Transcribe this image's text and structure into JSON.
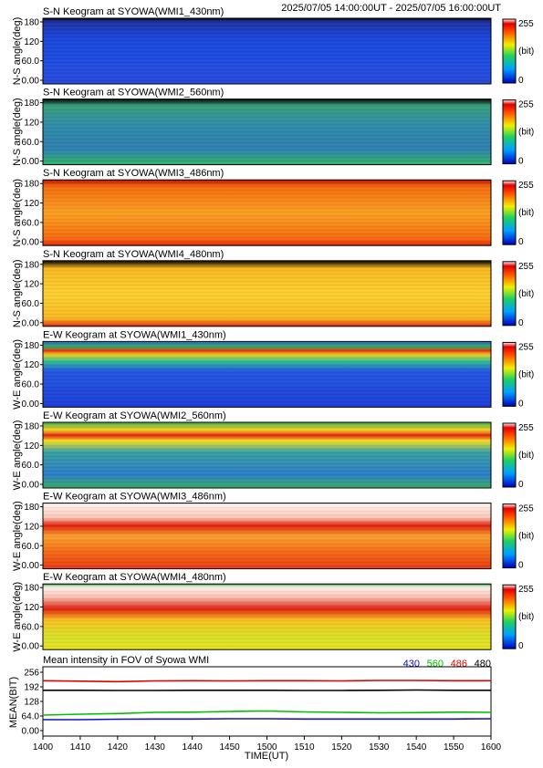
{
  "header": {
    "first_title": "S-N Keogram at SYOWA(WMI1_430nm)",
    "time_range": "2025/07/05 14:00:00UT - 2025/07/05 16:00:00UT"
  },
  "colorbar": {
    "max_label": "255",
    "unit_label": "(bit)",
    "min_label": "0"
  },
  "keograms": [
    {
      "title": "S-N Keogram at SYOWA(WMI1_430nm)",
      "ylabel": "N-S angle(deg)",
      "yticks": [
        "180",
        "120",
        "60.0",
        "0.00"
      ],
      "stops": [
        [
          0,
          "#2a4ad8"
        ],
        [
          0.3,
          "#1f4de0"
        ],
        [
          0.7,
          "#1a46dc"
        ],
        [
          0.95,
          "#1d2fa0"
        ],
        [
          1.0,
          "#000000"
        ]
      ]
    },
    {
      "title": "S-N Keogram at SYOWA(WMI2_560nm)",
      "ylabel": "N-S angle(deg)",
      "yticks": [
        "180",
        "120",
        "60.0",
        "0.00"
      ],
      "stops": [
        [
          0,
          "#2fb46a"
        ],
        [
          0.25,
          "#2f7fb0"
        ],
        [
          0.6,
          "#2f8aa8"
        ],
        [
          0.9,
          "#38a07a"
        ],
        [
          1.0,
          "#000000"
        ]
      ]
    },
    {
      "title": "S-N Keogram at SYOWA(WMI3_486nm)",
      "ylabel": "N-S angle(deg)",
      "yticks": [
        "180",
        "120",
        "60.0",
        "0.00"
      ],
      "stops": [
        [
          0,
          "#e0200c"
        ],
        [
          0.1,
          "#f46a10"
        ],
        [
          0.5,
          "#f8a020"
        ],
        [
          0.9,
          "#f46a10"
        ],
        [
          1.0,
          "#c01008"
        ]
      ]
    },
    {
      "title": "S-N Keogram at SYOWA(WMI4_480nm)",
      "ylabel": "N-S angle(deg)",
      "yticks": [
        "180",
        "120",
        "60.0",
        "0.00"
      ],
      "stops": [
        [
          0,
          "#e02a10"
        ],
        [
          0.12,
          "#f8b820"
        ],
        [
          0.5,
          "#fcd030"
        ],
        [
          0.88,
          "#f8b820"
        ],
        [
          1.0,
          "#000000"
        ]
      ]
    },
    {
      "title": "E-W Keogram at SYOWA(WMI1_430nm)",
      "ylabel": "W-E angle(deg)",
      "yticks": [
        "180",
        "120",
        "60.0",
        "0.00"
      ],
      "stops": [
        [
          0,
          "#1e3ed8"
        ],
        [
          0.55,
          "#2456e0"
        ],
        [
          0.7,
          "#30c090"
        ],
        [
          0.8,
          "#f0d020"
        ],
        [
          0.86,
          "#f03010"
        ],
        [
          0.92,
          "#30b060"
        ],
        [
          1.0,
          "#2a6ad8"
        ]
      ]
    },
    {
      "title": "E-W Keogram at SYOWA(WMI2_560nm)",
      "ylabel": "W-E angle(deg)",
      "yticks": [
        "180",
        "120",
        "60.0",
        "0.00"
      ],
      "stops": [
        [
          0,
          "#38b060"
        ],
        [
          0.2,
          "#2a7cc8"
        ],
        [
          0.55,
          "#3aa0a0"
        ],
        [
          0.72,
          "#f8e020"
        ],
        [
          0.8,
          "#e02010"
        ],
        [
          0.88,
          "#f8d020"
        ],
        [
          1.0,
          "#40b050"
        ]
      ]
    },
    {
      "title": "E-W Keogram at SYOWA(WMI3_486nm)",
      "ylabel": "W-E angle(deg)",
      "yticks": [
        "180",
        "120",
        "60.0",
        "0.00"
      ],
      "stops": [
        [
          0,
          "#e83a10"
        ],
        [
          0.25,
          "#f46a18"
        ],
        [
          0.5,
          "#f8a030"
        ],
        [
          0.66,
          "#e02010"
        ],
        [
          0.78,
          "#f8c8b8"
        ],
        [
          1.0,
          "#fff4f0"
        ]
      ]
    },
    {
      "title": "E-W Keogram at SYOWA(WMI4_480nm)",
      "ylabel": "W-E angle(deg)",
      "yticks": [
        "180",
        "120",
        "60.0",
        "0.00"
      ],
      "stops": [
        [
          0,
          "#e8e020"
        ],
        [
          0.2,
          "#d8e028"
        ],
        [
          0.45,
          "#f8c020"
        ],
        [
          0.62,
          "#e02010"
        ],
        [
          0.8,
          "#f8c0b0"
        ],
        [
          0.95,
          "#fff0ee"
        ],
        [
          1.0,
          "#30b040"
        ]
      ]
    }
  ],
  "chart_data": {
    "type": "line",
    "title": "Mean intensity in FOV of Syowa WMI",
    "xlabel": "TIME(UT)",
    "ylabel": "MEAN(BIT)",
    "x": [
      "1400",
      "1410",
      "1420",
      "1430",
      "1440",
      "1450",
      "1500",
      "1510",
      "1520",
      "1530",
      "1540",
      "1550",
      "1600"
    ],
    "xlim": [
      "1400",
      "1600"
    ],
    "ylim": [
      0,
      256
    ],
    "yticks": [
      "256",
      "192",
      "128",
      "64.0",
      "0.00"
    ],
    "series": [
      {
        "name": "430",
        "color": "#1010c0",
        "values": [
          48,
          48,
          50,
          51,
          51,
          52,
          52,
          51,
          51,
          51,
          51,
          51,
          52
        ]
      },
      {
        "name": "560",
        "color": "#00c000",
        "values": [
          68,
          72,
          75,
          80,
          81,
          84,
          86,
          82,
          80,
          78,
          79,
          81,
          80
        ]
      },
      {
        "name": "486",
        "color": "#e00000",
        "values": [
          219,
          217,
          215,
          218,
          219,
          218,
          219,
          219,
          218,
          220,
          220,
          219,
          219
        ]
      },
      {
        "name": "480",
        "color": "#000000",
        "values": [
          177,
          177,
          176,
          176,
          177,
          177,
          177,
          176,
          176,
          177,
          178,
          177,
          177
        ]
      }
    ]
  }
}
